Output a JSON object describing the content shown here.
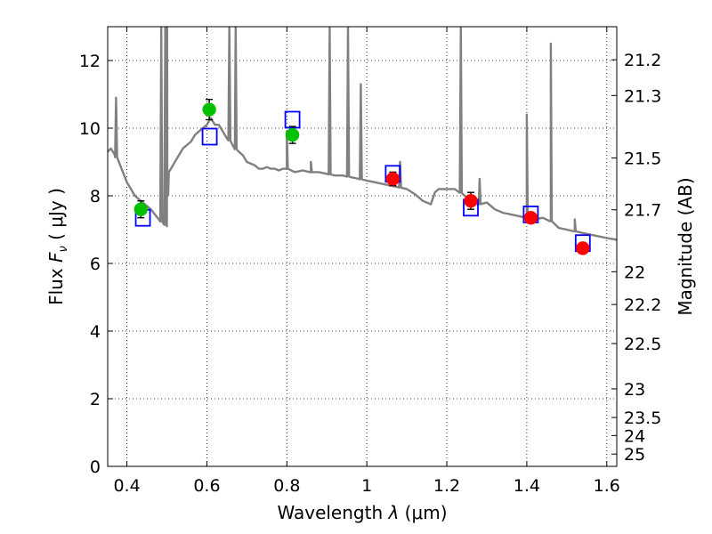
{
  "chart_data": {
    "type": "scatter",
    "xlabel": "Wavelength  λ (μm)",
    "ylabel": "Flux  F_ν  ( μJy )",
    "ylabel_parts": {
      "prefix": "Flux  ",
      "var": "F",
      "sub": "ν",
      "suffix": "  ( μJy )"
    },
    "xlabel_parts": {
      "prefix": "Wavelength  ",
      "var": "λ",
      "suffix": " (μm)"
    },
    "y2label": "Magnitude (AB)",
    "xlim": [
      0.352,
      1.625
    ],
    "ylim": [
      0,
      13
    ],
    "grid": true,
    "grid_style": "dotted",
    "x_ticks": [
      {
        "value": 0.4,
        "label": "0.4"
      },
      {
        "value": 0.6,
        "label": "0.6"
      },
      {
        "value": 0.8,
        "label": "0.8"
      },
      {
        "value": 1.0,
        "label": "1"
      },
      {
        "value": 1.2,
        "label": "1.2"
      },
      {
        "value": 1.4,
        "label": "1.4"
      },
      {
        "value": 1.6,
        "label": "1.6"
      }
    ],
    "y_ticks": [
      {
        "value": 0,
        "label": "0"
      },
      {
        "value": 2,
        "label": "2"
      },
      {
        "value": 4,
        "label": "4"
      },
      {
        "value": 6,
        "label": "6"
      },
      {
        "value": 8,
        "label": "8"
      },
      {
        "value": 10,
        "label": "10"
      },
      {
        "value": 12,
        "label": "12"
      }
    ],
    "y2_ticks": [
      {
        "value": 21.2,
        "label": "21.2"
      },
      {
        "value": 21.3,
        "label": "21.3"
      },
      {
        "value": 21.5,
        "label": "21.5"
      },
      {
        "value": 21.7,
        "label": "21.7"
      },
      {
        "value": 22,
        "label": "22"
      },
      {
        "value": 22.2,
        "label": "22.2"
      },
      {
        "value": 22.5,
        "label": "22.5"
      },
      {
        "value": 23,
        "label": "23"
      },
      {
        "value": 23.5,
        "label": "23.5"
      },
      {
        "value": 24,
        "label": "24"
      },
      {
        "value": 25,
        "label": "25"
      }
    ],
    "colors": {
      "spectrum": "#808080",
      "model_box": "#0000ff",
      "green_points": "#00c000",
      "red_points": "#ff0000",
      "error_bar": "#000000"
    },
    "series": [
      {
        "type": "line",
        "role": "model spectrum",
        "points": [
          [
            0.352,
            9.3
          ],
          [
            0.36,
            9.4
          ],
          [
            0.37,
            9.2
          ],
          [
            0.38,
            9.0
          ],
          [
            0.39,
            8.7
          ],
          [
            0.4,
            8.4
          ],
          [
            0.41,
            8.2
          ],
          [
            0.42,
            8.0
          ],
          [
            0.43,
            7.9
          ],
          [
            0.44,
            7.8
          ],
          [
            0.45,
            7.7
          ],
          [
            0.46,
            7.6
          ],
          [
            0.47,
            7.45
          ],
          [
            0.48,
            7.3
          ],
          [
            0.49,
            7.2
          ],
          [
            0.5,
            7.1
          ],
          [
            0.501,
            8.4
          ],
          [
            0.505,
            8.7
          ],
          [
            0.51,
            8.8
          ],
          [
            0.52,
            9.0
          ],
          [
            0.53,
            9.2
          ],
          [
            0.54,
            9.4
          ],
          [
            0.55,
            9.5
          ],
          [
            0.56,
            9.6
          ],
          [
            0.57,
            9.8
          ],
          [
            0.58,
            9.9
          ],
          [
            0.59,
            10.0
          ],
          [
            0.6,
            10.1
          ],
          [
            0.61,
            10.3
          ],
          [
            0.62,
            10.1
          ],
          [
            0.63,
            10.1
          ],
          [
            0.64,
            9.9
          ],
          [
            0.65,
            9.7
          ],
          [
            0.66,
            9.6
          ],
          [
            0.67,
            9.4
          ],
          [
            0.68,
            9.3
          ],
          [
            0.69,
            9.2
          ],
          [
            0.7,
            9.0
          ],
          [
            0.71,
            8.95
          ],
          [
            0.72,
            8.9
          ],
          [
            0.73,
            8.8
          ],
          [
            0.74,
            8.8
          ],
          [
            0.75,
            8.85
          ],
          [
            0.76,
            8.8
          ],
          [
            0.77,
            8.8
          ],
          [
            0.78,
            8.75
          ],
          [
            0.79,
            8.8
          ],
          [
            0.8,
            8.8
          ],
          [
            0.82,
            8.7
          ],
          [
            0.84,
            8.75
          ],
          [
            0.86,
            8.7
          ],
          [
            0.88,
            8.7
          ],
          [
            0.9,
            8.65
          ],
          [
            0.92,
            8.6
          ],
          [
            0.94,
            8.6
          ],
          [
            0.96,
            8.55
          ],
          [
            0.98,
            8.5
          ],
          [
            1.0,
            8.45
          ],
          [
            1.02,
            8.4
          ],
          [
            1.04,
            8.35
          ],
          [
            1.06,
            8.3
          ],
          [
            1.08,
            8.25
          ],
          [
            1.1,
            8.2
          ],
          [
            1.12,
            8.05
          ],
          [
            1.14,
            7.85
          ],
          [
            1.16,
            7.75
          ],
          [
            1.17,
            8.1
          ],
          [
            1.18,
            8.2
          ],
          [
            1.2,
            8.2
          ],
          [
            1.22,
            8.2
          ],
          [
            1.24,
            8.05
          ],
          [
            1.26,
            7.85
          ],
          [
            1.28,
            7.75
          ],
          [
            1.3,
            7.8
          ],
          [
            1.32,
            7.6
          ],
          [
            1.34,
            7.5
          ],
          [
            1.36,
            7.45
          ],
          [
            1.38,
            7.4
          ],
          [
            1.4,
            7.35
          ],
          [
            1.42,
            7.3
          ],
          [
            1.44,
            7.35
          ],
          [
            1.46,
            7.25
          ],
          [
            1.48,
            7.05
          ],
          [
            1.5,
            7.0
          ],
          [
            1.52,
            6.95
          ],
          [
            1.54,
            6.9
          ],
          [
            1.56,
            6.85
          ],
          [
            1.58,
            6.8
          ],
          [
            1.6,
            6.75
          ],
          [
            1.625,
            6.7
          ]
        ],
        "emission_lines": [
          {
            "x": 0.373,
            "peak": 10.9
          },
          {
            "x": 0.486,
            "peak": 13.0
          },
          {
            "x": 0.496,
            "peak": 13.0
          },
          {
            "x": 0.5007,
            "peak": 13.0
          },
          {
            "x": 0.6563,
            "peak": 13.0
          },
          {
            "x": 0.672,
            "peak": 13.0
          },
          {
            "x": 0.8,
            "peak": 9.9
          },
          {
            "x": 0.86,
            "peak": 9.0
          },
          {
            "x": 0.907,
            "peak": 13.0
          },
          {
            "x": 0.953,
            "peak": 13.0
          },
          {
            "x": 0.985,
            "peak": 11.3
          },
          {
            "x": 1.083,
            "peak": 9.0
          },
          {
            "x": 1.235,
            "peak": 13.0
          },
          {
            "x": 1.282,
            "peak": 8.5
          },
          {
            "x": 1.4,
            "peak": 10.4
          },
          {
            "x": 1.46,
            "peak": 12.5
          },
          {
            "x": 1.52,
            "peak": 7.3
          }
        ]
      },
      {
        "type": "box",
        "role": "model photometry",
        "points": [
          {
            "x": 0.44,
            "y": 7.35
          },
          {
            "x": 0.607,
            "y": 9.75
          },
          {
            "x": 0.814,
            "y": 10.25
          },
          {
            "x": 1.065,
            "y": 8.65
          },
          {
            "x": 1.26,
            "y": 7.65
          },
          {
            "x": 1.41,
            "y": 7.45
          },
          {
            "x": 1.54,
            "y": 6.6
          }
        ]
      },
      {
        "type": "scatter",
        "role": "observed photometry (green)",
        "points": [
          {
            "x": 0.435,
            "y": 7.6,
            "err": 0.25
          },
          {
            "x": 0.606,
            "y": 10.55,
            "err": 0.3
          },
          {
            "x": 0.814,
            "y": 9.8,
            "err": 0.25
          }
        ]
      },
      {
        "type": "scatter",
        "role": "observed photometry (red)",
        "points": [
          {
            "x": 1.065,
            "y": 8.5,
            "err": 0.2
          },
          {
            "x": 1.26,
            "y": 7.85,
            "err": 0.25
          },
          {
            "x": 1.41,
            "y": 7.35,
            "err": 0.15
          },
          {
            "x": 1.54,
            "y": 6.45,
            "err": 0.15
          }
        ]
      }
    ]
  }
}
